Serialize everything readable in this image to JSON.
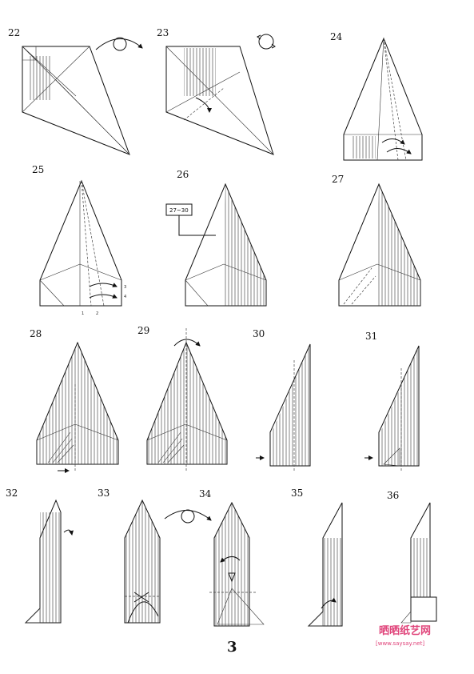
{
  "steps": [
    "22",
    "23",
    "24",
    "25",
    "26",
    "27",
    "28",
    "29",
    "30",
    "31",
    "32",
    "33",
    "34",
    "35",
    "36"
  ],
  "step26_ref": "27~30",
  "step25_labels": [
    "3",
    "4",
    "1",
    "2"
  ],
  "page_number": "3",
  "watermark": {
    "text": "晒晒纸艺网",
    "url": "[www.saysay.net]"
  }
}
